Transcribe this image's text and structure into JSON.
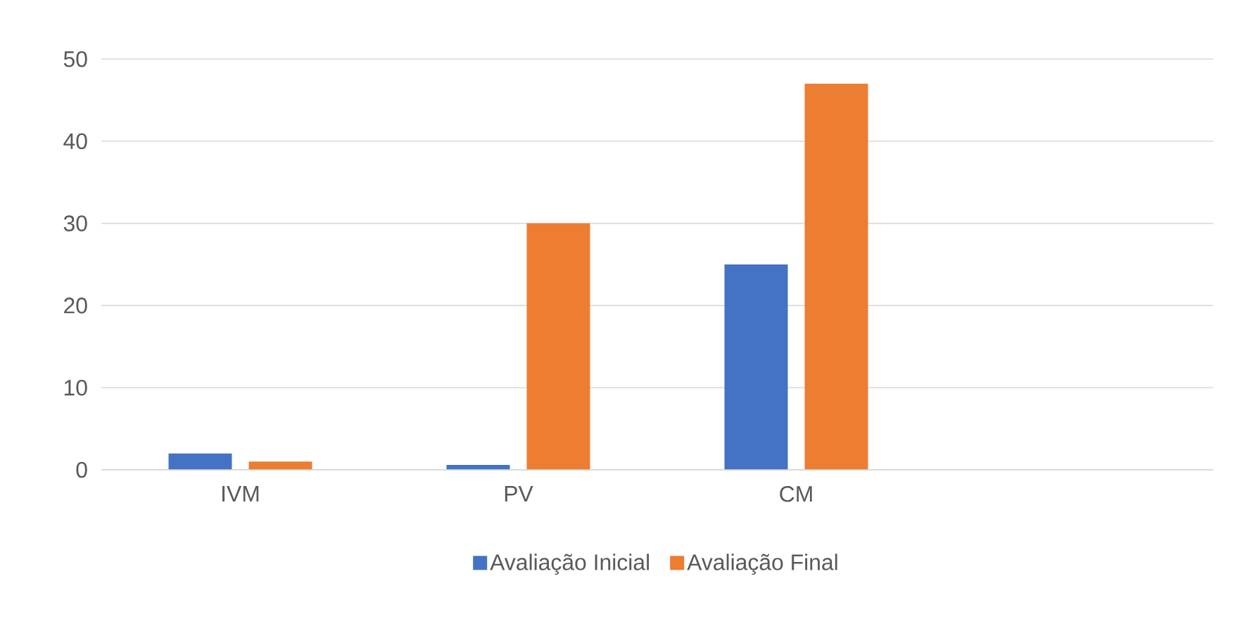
{
  "chart_data": {
    "type": "bar",
    "categories": [
      "IVM",
      "PV",
      "CM",
      null
    ],
    "series": [
      {
        "name": "Avaliação Inicial",
        "color": "#4472c4",
        "values": [
          2,
          0.6,
          25,
          null
        ]
      },
      {
        "name": "Avaliação Final",
        "color": "#ed7d31",
        "values": [
          1,
          30,
          47,
          null
        ]
      }
    ],
    "ylim": [
      0,
      50
    ],
    "yticks": [
      0,
      10,
      20,
      30,
      40,
      50
    ],
    "grid": "y",
    "legend": "bottom"
  }
}
